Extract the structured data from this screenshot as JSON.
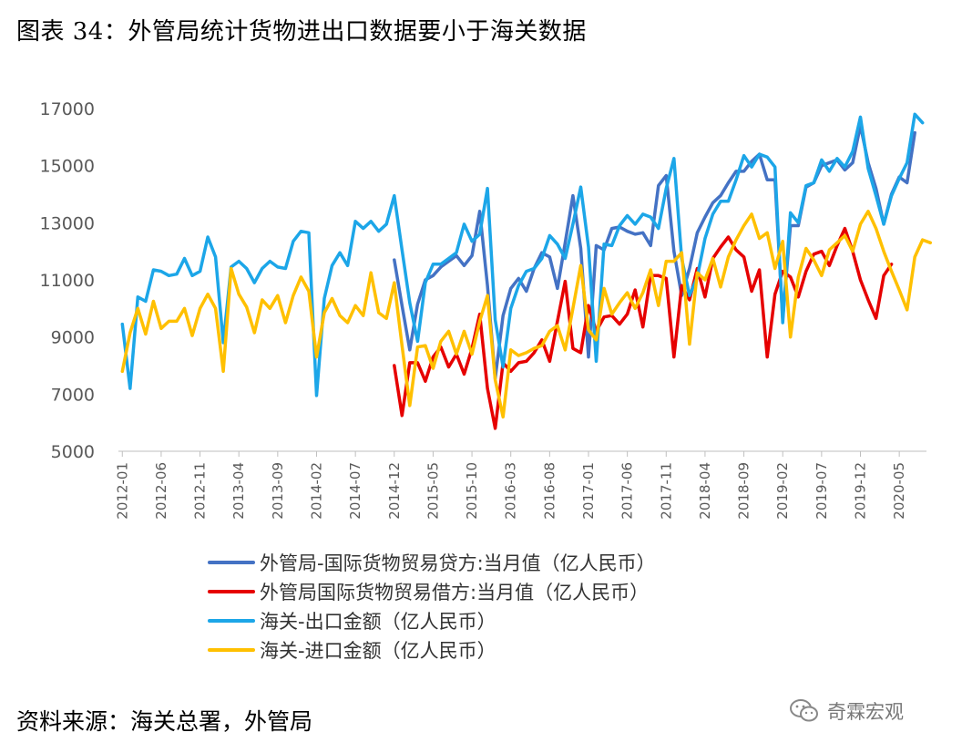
{
  "header": {
    "title": "图表 34：外管局统计货物进出口数据要小于海关数据"
  },
  "footer": {
    "source": "资料来源：海关总署，外管局",
    "watermark": "奇霖宏观"
  },
  "chart_data": {
    "type": "line",
    "title": "",
    "xlabel": "",
    "ylabel": "",
    "ylim": [
      5000,
      17000
    ],
    "yticks": [
      "5000",
      "7000",
      "9000",
      "11000",
      "13000",
      "15000",
      "17000"
    ],
    "x_tick_labels": [
      "2012-01",
      "2012-06",
      "2012-11",
      "2013-04",
      "2013-09",
      "2014-02",
      "2014-07",
      "2014-12",
      "2015-05",
      "2015-10",
      "2016-03",
      "2016-08",
      "2017-01",
      "2017-06",
      "2017-11",
      "2018-04",
      "2018-09",
      "2019-02",
      "2019-07",
      "2019-12",
      "2020-05"
    ],
    "x_start": "2012-01",
    "x_end": "2020-08",
    "grid": false,
    "legend_position": "bottom",
    "series": [
      {
        "name": "外管局-国际货物贸易贷方:当月值（亿人民币）",
        "color": "#4472C4",
        "start": "2014-12",
        "values": [
          11700,
          10100,
          8550,
          10150,
          11000,
          11150,
          11450,
          11650,
          11850,
          11500,
          11850,
          13400,
          10800,
          7550,
          9750,
          10700,
          11050,
          10600,
          11400,
          11950,
          11800,
          10700,
          12300,
          13950,
          12100,
          8300,
          12200,
          12050,
          12800,
          12850,
          12700,
          12600,
          12650,
          12200,
          14300,
          14650,
          12000,
          10450,
          11400,
          12650,
          13200,
          13700,
          13950,
          14400,
          14800,
          14800,
          15150,
          15400,
          14500,
          14500,
          9650,
          12900,
          12900,
          14250,
          14400,
          15000,
          15100,
          15200,
          14850,
          15100,
          16400,
          15100,
          14200,
          12950,
          14000,
          14600,
          14400,
          16150
        ]
      },
      {
        "name": "外管局国际货物贸易借方:当月值（亿人民币）",
        "color": "#E60000",
        "start": "2014-12",
        "values": [
          8000,
          6250,
          8100,
          8100,
          7450,
          8300,
          8650,
          7950,
          8400,
          7700,
          8600,
          9800,
          7200,
          5800,
          8100,
          7800,
          8100,
          8150,
          8450,
          8900,
          8150,
          9550,
          10950,
          8600,
          8450,
          10100,
          9200,
          9700,
          9750,
          9450,
          9800,
          10650,
          9350,
          11150,
          11150,
          11050,
          8300,
          10800,
          10300,
          11400,
          10400,
          11750,
          12150,
          12500,
          12050,
          11800,
          10600,
          11350,
          8300,
          10500,
          11300,
          11100,
          10400,
          11300,
          11900,
          12000,
          11500,
          12200,
          12800,
          12000,
          11000,
          10300,
          9650,
          11150,
          11550
        ]
      },
      {
        "name": "海关-出口金额（亿人民币）",
        "color": "#1CA6E8",
        "start": "2012-01",
        "values": [
          9450,
          7200,
          10400,
          10250,
          11350,
          11300,
          11150,
          11200,
          11750,
          11150,
          11300,
          12500,
          11800,
          8800,
          11450,
          11650,
          11400,
          10900,
          11400,
          11650,
          11450,
          11400,
          12350,
          12700,
          12650,
          6950,
          10350,
          11500,
          11950,
          11500,
          13050,
          12800,
          13050,
          12700,
          12950,
          13950,
          12050,
          10200,
          8850,
          10900,
          11550,
          11550,
          11750,
          11950,
          12950,
          12350,
          12600,
          14200,
          9600,
          7950,
          10000,
          10800,
          11300,
          11400,
          11750,
          12550,
          12250,
          11750,
          12950,
          14250,
          12150,
          8150,
          12250,
          12200,
          12900,
          13250,
          12950,
          13300,
          13200,
          12800,
          14200,
          15250,
          11750,
          10450,
          11100,
          12450,
          13300,
          13750,
          13750,
          14500,
          15350,
          14950,
          15400,
          15300,
          14950,
          9500,
          13350,
          13000,
          14300,
          14400,
          15200,
          14800,
          15250,
          14950,
          15500,
          16700,
          14900,
          13950,
          12950,
          13950,
          14550,
          15100,
          16800,
          16500
        ]
      },
      {
        "name": "海关-进口金额（亿人民币）",
        "color": "#FFC000",
        "start": "2012-01",
        "values": [
          7800,
          9150,
          10000,
          9100,
          10250,
          9300,
          9550,
          9550,
          10000,
          9050,
          10000,
          10500,
          10000,
          7800,
          11400,
          10500,
          10050,
          9150,
          10300,
          10000,
          10450,
          9500,
          10450,
          11100,
          10600,
          8300,
          9850,
          10350,
          9750,
          9500,
          10100,
          9750,
          11250,
          9850,
          9650,
          10900,
          8700,
          6600,
          8650,
          8700,
          7900,
          8850,
          9200,
          8400,
          9200,
          8400,
          9550,
          10450,
          7500,
          6200,
          8550,
          8350,
          8450,
          8600,
          8700,
          9200,
          9400,
          8550,
          10000,
          11500,
          9250,
          8900,
          10700,
          9800,
          10200,
          10550,
          10000,
          10550,
          11350,
          10100,
          11650,
          11650,
          11950,
          8750,
          11250,
          11000,
          11750,
          10750,
          11800,
          12400,
          12900,
          13300,
          12450,
          12650,
          11400,
          12350,
          9000,
          11100,
          12100,
          11700,
          11150,
          12050,
          12300,
          12550,
          12000,
          12950,
          13400,
          12800,
          12000,
          11300,
          10650,
          9950,
          11800,
          12400,
          12300
        ]
      }
    ]
  }
}
